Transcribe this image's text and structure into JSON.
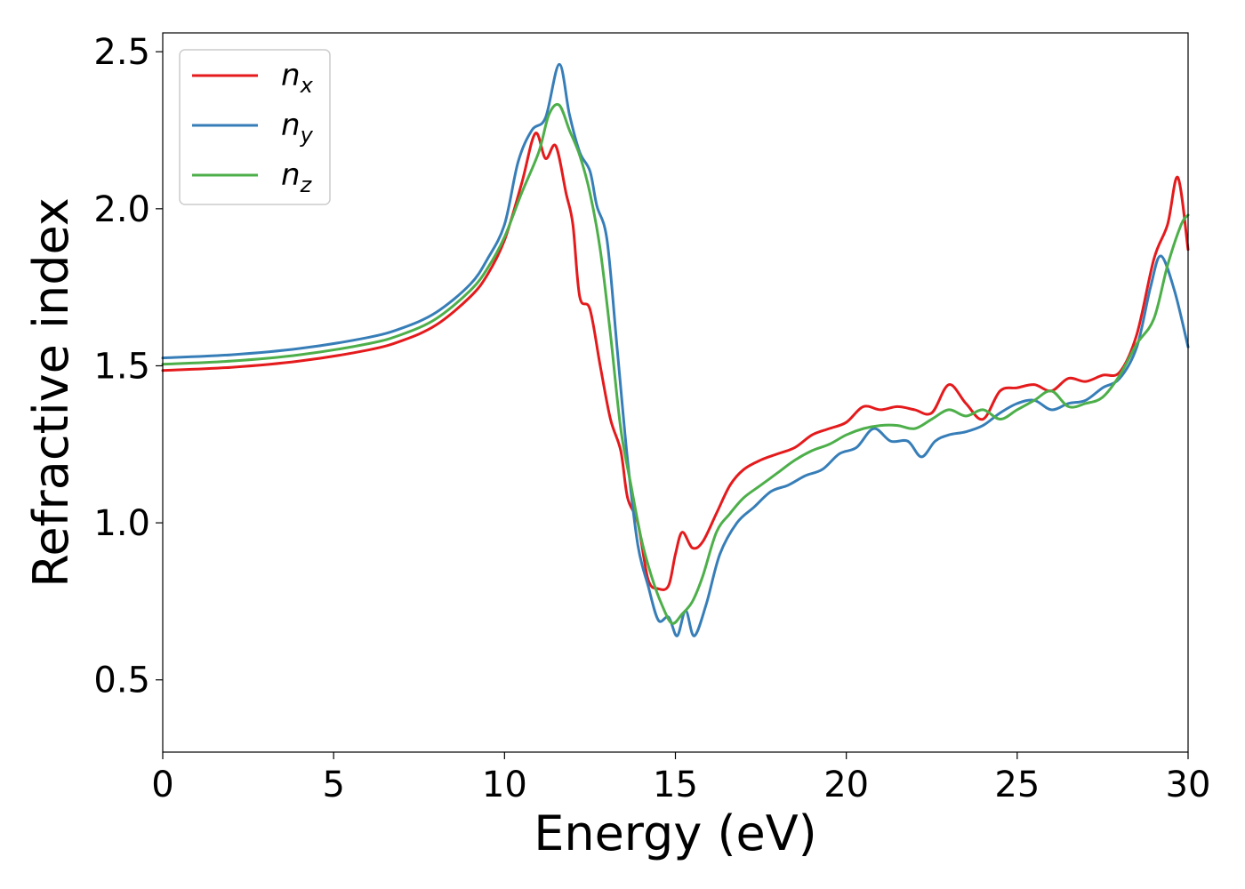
{
  "chart_data": {
    "type": "line",
    "title": "",
    "xlabel": "Energy (eV)",
    "ylabel": "Refractive index",
    "xlim": [
      0,
      30
    ],
    "ylim": [
      0.27,
      2.56
    ],
    "xticks": [
      0,
      5,
      10,
      15,
      20,
      25,
      30
    ],
    "xtick_labels": [
      "0",
      "5",
      "10",
      "15",
      "20",
      "25",
      "30"
    ],
    "yticks": [
      0.5,
      1.0,
      1.5,
      2.0,
      2.5
    ],
    "ytick_labels": [
      "0.5",
      "1.0",
      "1.5",
      "2.0",
      "2.5"
    ],
    "grid": false,
    "legend_position": "top-left",
    "series": [
      {
        "name": "n_x",
        "label_base": "n",
        "label_sub": "x",
        "color": "#e41a1c",
        "points": [
          [
            0,
            1.485
          ],
          [
            2,
            1.495
          ],
          [
            4,
            1.515
          ],
          [
            6,
            1.55
          ],
          [
            7,
            1.58
          ],
          [
            8,
            1.63
          ],
          [
            9,
            1.72
          ],
          [
            9.5,
            1.79
          ],
          [
            10,
            1.9
          ],
          [
            10.5,
            2.08
          ],
          [
            10.9,
            2.24
          ],
          [
            11.2,
            2.16
          ],
          [
            11.5,
            2.2
          ],
          [
            11.8,
            2.05
          ],
          [
            12,
            1.95
          ],
          [
            12.2,
            1.72
          ],
          [
            12.5,
            1.68
          ],
          [
            12.8,
            1.5
          ],
          [
            13.1,
            1.33
          ],
          [
            13.4,
            1.23
          ],
          [
            13.6,
            1.08
          ],
          [
            13.9,
            1.0
          ],
          [
            14.2,
            0.82
          ],
          [
            14.5,
            0.79
          ],
          [
            14.8,
            0.8
          ],
          [
            15.0,
            0.9
          ],
          [
            15.2,
            0.97
          ],
          [
            15.5,
            0.92
          ],
          [
            15.8,
            0.94
          ],
          [
            16.2,
            1.03
          ],
          [
            16.6,
            1.12
          ],
          [
            17,
            1.17
          ],
          [
            17.5,
            1.2
          ],
          [
            18,
            1.22
          ],
          [
            18.5,
            1.24
          ],
          [
            19,
            1.28
          ],
          [
            19.5,
            1.3
          ],
          [
            20,
            1.32
          ],
          [
            20.5,
            1.37
          ],
          [
            21,
            1.36
          ],
          [
            21.5,
            1.37
          ],
          [
            22,
            1.36
          ],
          [
            22.5,
            1.35
          ],
          [
            23,
            1.44
          ],
          [
            23.5,
            1.38
          ],
          [
            24,
            1.33
          ],
          [
            24.5,
            1.42
          ],
          [
            25,
            1.43
          ],
          [
            25.5,
            1.44
          ],
          [
            26,
            1.42
          ],
          [
            26.5,
            1.46
          ],
          [
            27,
            1.45
          ],
          [
            27.5,
            1.47
          ],
          [
            28,
            1.48
          ],
          [
            28.5,
            1.6
          ],
          [
            29,
            1.84
          ],
          [
            29.4,
            1.95
          ],
          [
            29.7,
            2.1
          ],
          [
            30,
            1.87
          ]
        ]
      },
      {
        "name": "n_y",
        "label_base": "n",
        "label_sub": "y",
        "color": "#377eb8",
        "points": [
          [
            0,
            1.525
          ],
          [
            2,
            1.535
          ],
          [
            4,
            1.555
          ],
          [
            6,
            1.59
          ],
          [
            7,
            1.62
          ],
          [
            8,
            1.67
          ],
          [
            9,
            1.76
          ],
          [
            9.5,
            1.84
          ],
          [
            10,
            1.95
          ],
          [
            10.4,
            2.15
          ],
          [
            10.8,
            2.25
          ],
          [
            11.2,
            2.29
          ],
          [
            11.6,
            2.46
          ],
          [
            11.9,
            2.3
          ],
          [
            12.2,
            2.18
          ],
          [
            12.5,
            2.12
          ],
          [
            12.7,
            2.01
          ],
          [
            13,
            1.9
          ],
          [
            13.3,
            1.55
          ],
          [
            13.6,
            1.2
          ],
          [
            13.9,
            0.93
          ],
          [
            14.2,
            0.8
          ],
          [
            14.5,
            0.69
          ],
          [
            14.8,
            0.7
          ],
          [
            15.05,
            0.64
          ],
          [
            15.3,
            0.72
          ],
          [
            15.55,
            0.64
          ],
          [
            15.9,
            0.74
          ],
          [
            16.3,
            0.9
          ],
          [
            16.8,
            1.0
          ],
          [
            17.3,
            1.05
          ],
          [
            17.8,
            1.1
          ],
          [
            18.3,
            1.12
          ],
          [
            18.8,
            1.15
          ],
          [
            19.3,
            1.17
          ],
          [
            19.8,
            1.22
          ],
          [
            20.3,
            1.24
          ],
          [
            20.8,
            1.3
          ],
          [
            21.3,
            1.26
          ],
          [
            21.8,
            1.26
          ],
          [
            22.2,
            1.21
          ],
          [
            22.6,
            1.26
          ],
          [
            23,
            1.28
          ],
          [
            23.5,
            1.29
          ],
          [
            24,
            1.31
          ],
          [
            24.5,
            1.35
          ],
          [
            25,
            1.38
          ],
          [
            25.5,
            1.39
          ],
          [
            26,
            1.36
          ],
          [
            26.5,
            1.38
          ],
          [
            27,
            1.39
          ],
          [
            27.5,
            1.43
          ],
          [
            28,
            1.46
          ],
          [
            28.5,
            1.56
          ],
          [
            28.9,
            1.75
          ],
          [
            29.2,
            1.85
          ],
          [
            29.6,
            1.74
          ],
          [
            30,
            1.56
          ]
        ]
      },
      {
        "name": "n_z",
        "label_base": "n",
        "label_sub": "z",
        "color": "#4daf4a",
        "points": [
          [
            0,
            1.505
          ],
          [
            2,
            1.515
          ],
          [
            4,
            1.535
          ],
          [
            6,
            1.57
          ],
          [
            7,
            1.6
          ],
          [
            8,
            1.65
          ],
          [
            9,
            1.74
          ],
          [
            9.5,
            1.81
          ],
          [
            10,
            1.91
          ],
          [
            10.5,
            2.05
          ],
          [
            11,
            2.18
          ],
          [
            11.3,
            2.3
          ],
          [
            11.6,
            2.33
          ],
          [
            11.9,
            2.25
          ],
          [
            12.2,
            2.17
          ],
          [
            12.5,
            2.05
          ],
          [
            12.8,
            1.87
          ],
          [
            13.1,
            1.6
          ],
          [
            13.4,
            1.3
          ],
          [
            13.7,
            1.12
          ],
          [
            14.0,
            0.95
          ],
          [
            14.3,
            0.83
          ],
          [
            14.6,
            0.74
          ],
          [
            14.9,
            0.68
          ],
          [
            15.2,
            0.71
          ],
          [
            15.5,
            0.75
          ],
          [
            15.8,
            0.83
          ],
          [
            16.2,
            0.97
          ],
          [
            16.6,
            1.03
          ],
          [
            17,
            1.08
          ],
          [
            17.5,
            1.12
          ],
          [
            18,
            1.16
          ],
          [
            18.5,
            1.2
          ],
          [
            19,
            1.23
          ],
          [
            19.5,
            1.25
          ],
          [
            20,
            1.28
          ],
          [
            20.5,
            1.3
          ],
          [
            21,
            1.31
          ],
          [
            21.5,
            1.31
          ],
          [
            22,
            1.3
          ],
          [
            22.5,
            1.33
          ],
          [
            23,
            1.36
          ],
          [
            23.5,
            1.34
          ],
          [
            24,
            1.36
          ],
          [
            24.5,
            1.33
          ],
          [
            25,
            1.36
          ],
          [
            25.5,
            1.39
          ],
          [
            26,
            1.42
          ],
          [
            26.5,
            1.37
          ],
          [
            27,
            1.38
          ],
          [
            27.5,
            1.4
          ],
          [
            28,
            1.47
          ],
          [
            28.5,
            1.57
          ],
          [
            29,
            1.65
          ],
          [
            29.4,
            1.82
          ],
          [
            29.8,
            1.95
          ],
          [
            30,
            1.98
          ]
        ]
      }
    ]
  }
}
